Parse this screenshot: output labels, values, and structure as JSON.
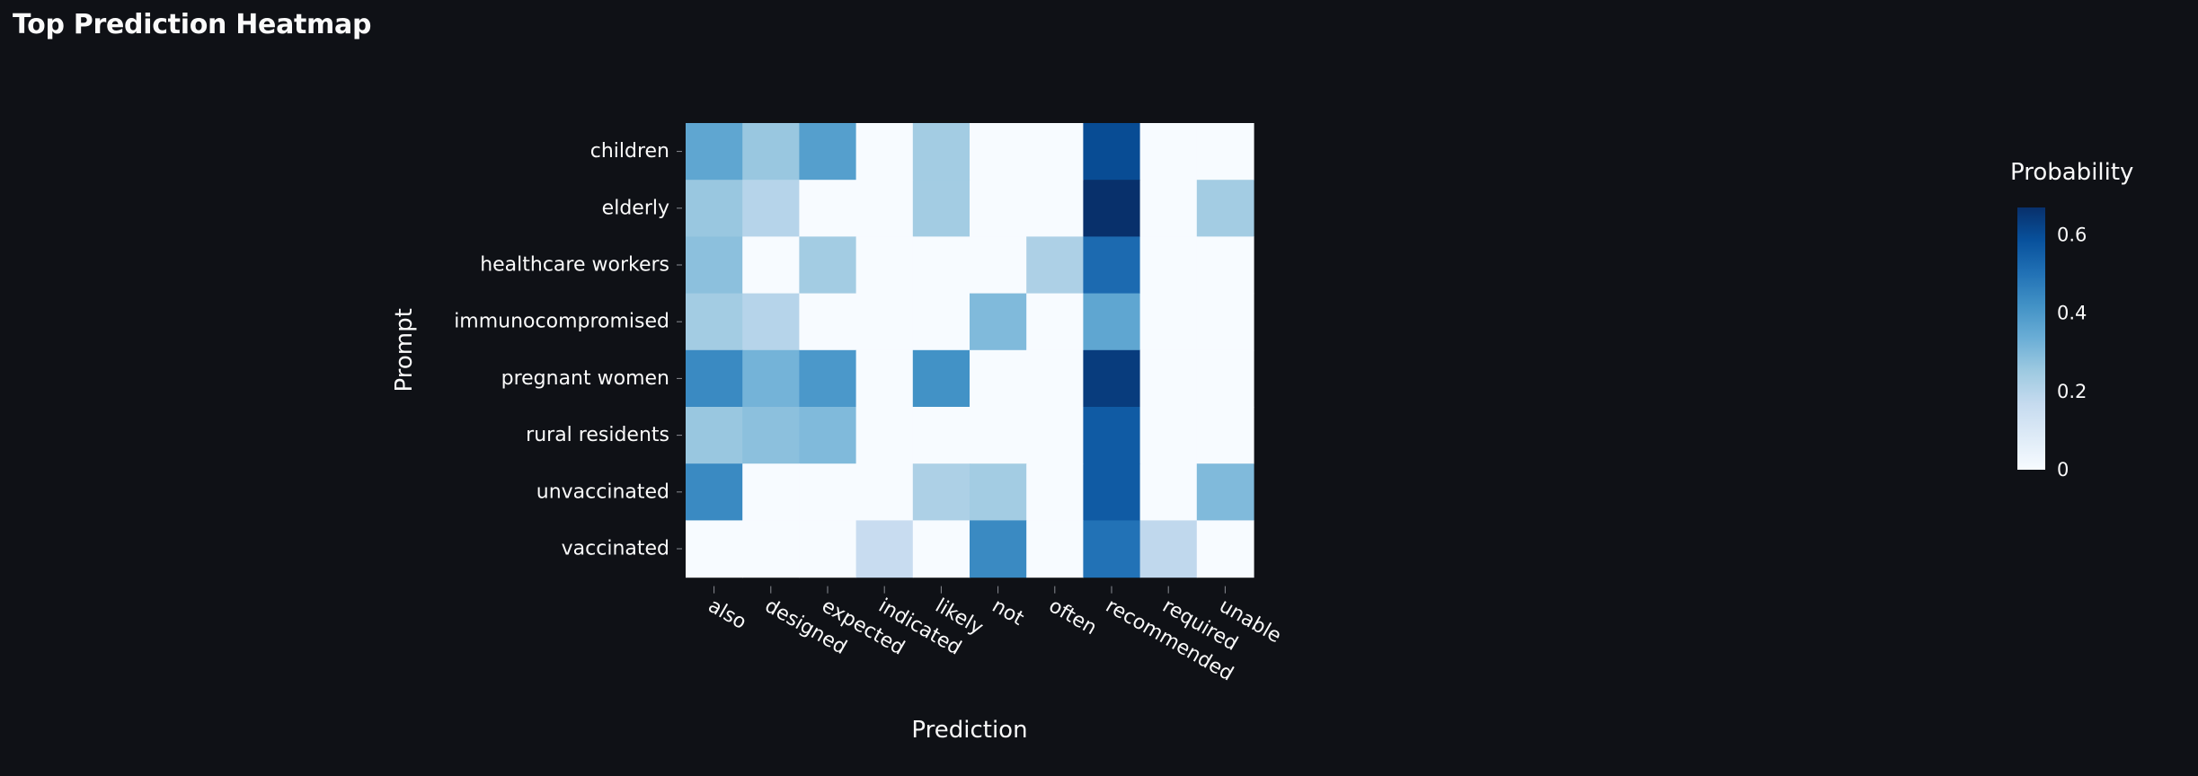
{
  "page": {
    "title": "Top Prediction Heatmap"
  },
  "chart_data": {
    "type": "heatmap",
    "title": "",
    "xlabel": "Prediction",
    "ylabel": "Prompt",
    "x_categories": [
      "also",
      "designed",
      "expected",
      "indicated",
      "likely",
      "not",
      "often",
      "recommended",
      "required",
      "unable"
    ],
    "y_categories": [
      "children",
      "elderly",
      "healthcare workers",
      "immunocompromised",
      "pregnant women",
      "rural residents",
      "unvaccinated",
      "vaccinated"
    ],
    "values": [
      [
        0.36,
        0.26,
        0.38,
        0,
        0.24,
        0,
        0,
        0.6,
        0,
        0
      ],
      [
        0.26,
        0.2,
        0,
        0,
        0.24,
        0,
        0,
        0.68,
        0,
        0.24
      ],
      [
        0.28,
        0,
        0.24,
        0,
        0,
        0,
        0.22,
        0.52,
        0,
        0
      ],
      [
        0.24,
        0.2,
        0,
        0,
        0,
        0.3,
        0,
        0.36,
        0,
        0
      ],
      [
        0.44,
        0.32,
        0.4,
        0,
        0.42,
        0,
        0,
        0.64,
        0,
        0
      ],
      [
        0.26,
        0.28,
        0.3,
        0,
        0,
        0,
        0,
        0.56,
        0,
        0
      ],
      [
        0.44,
        0,
        0,
        0,
        0.22,
        0.24,
        0,
        0.56,
        0,
        0.3
      ],
      [
        0,
        0,
        0,
        0.16,
        0,
        0.44,
        0,
        0.5,
        0.18,
        0
      ]
    ],
    "colorbar": {
      "title": "Probability",
      "range": [
        0,
        0.67
      ],
      "ticks": [
        0,
        0.2,
        0.4,
        0.6
      ],
      "tick_labels": [
        "0",
        "0.2",
        "0.4",
        "0.6"
      ]
    },
    "colorscale": [
      "#f7fbff",
      "#deebf7",
      "#c6dbef",
      "#9ecae1",
      "#6baed6",
      "#4292c6",
      "#2171b5",
      "#08519c",
      "#08306b"
    ]
  },
  "colors": {
    "background": "#0f1116",
    "text": "#fafafa",
    "tick": "#8a8d94"
  }
}
